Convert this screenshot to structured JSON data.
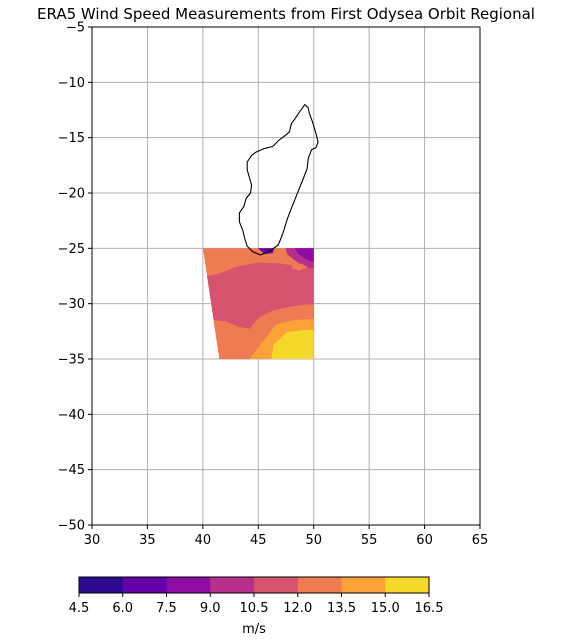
{
  "chart_data": {
    "type": "heatmap",
    "title": "ERA5 Wind Speed Measurements from First Odysea Orbit Regional",
    "x_ticks": [
      30,
      35,
      40,
      45,
      50,
      55,
      60,
      65
    ],
    "y_ticks": [
      -5,
      -10,
      -15,
      -20,
      -25,
      -30,
      -35,
      -40,
      -45,
      -50
    ],
    "xlim": [
      30,
      65
    ],
    "ylim": [
      -50,
      -5
    ],
    "grid": true,
    "colorbar": {
      "label": "m/s",
      "boundaries": [
        4.5,
        6.0,
        7.5,
        9.0,
        10.5,
        12.0,
        13.5,
        15.0,
        16.5
      ],
      "tick_labels": [
        "4.5",
        "6.0",
        "7.5",
        "9.0",
        "10.5",
        "12.0",
        "13.5",
        "15.0",
        "16.5"
      ],
      "colors": [
        "#2c0a8e",
        "#6300a7",
        "#8e0ca4",
        "#b6308b",
        "#d5536f",
        "#ee7b51",
        "#fba238",
        "#f5d829"
      ]
    },
    "coastline": {
      "name": "Madagascar",
      "lon_lat": [
        [
          49.2,
          -12.0
        ],
        [
          49.5,
          -12.3
        ],
        [
          49.6,
          -12.8
        ],
        [
          49.9,
          -13.6
        ],
        [
          50.2,
          -14.6
        ],
        [
          50.4,
          -15.4
        ],
        [
          50.2,
          -15.9
        ],
        [
          49.8,
          -16.1
        ],
        [
          49.5,
          -16.9
        ],
        [
          49.4,
          -17.8
        ],
        [
          49.1,
          -18.6
        ],
        [
          48.7,
          -19.6
        ],
        [
          48.3,
          -20.6
        ],
        [
          47.9,
          -21.6
        ],
        [
          47.6,
          -22.4
        ],
        [
          47.3,
          -23.4
        ],
        [
          47.0,
          -24.2
        ],
        [
          46.8,
          -24.7
        ],
        [
          46.1,
          -25.2
        ],
        [
          45.2,
          -25.6
        ],
        [
          44.5,
          -25.3
        ],
        [
          44.0,
          -24.8
        ],
        [
          43.8,
          -24.2
        ],
        [
          43.6,
          -23.4
        ],
        [
          43.3,
          -22.6
        ],
        [
          43.3,
          -21.8
        ],
        [
          43.7,
          -21.2
        ],
        [
          43.9,
          -20.5
        ],
        [
          44.3,
          -20.0
        ],
        [
          44.4,
          -19.3
        ],
        [
          44.2,
          -18.6
        ],
        [
          44.0,
          -17.9
        ],
        [
          44.0,
          -17.2
        ],
        [
          44.4,
          -16.6
        ],
        [
          44.8,
          -16.3
        ],
        [
          45.5,
          -16.0
        ],
        [
          46.3,
          -15.8
        ],
        [
          46.9,
          -15.2
        ],
        [
          47.3,
          -14.9
        ],
        [
          47.8,
          -14.5
        ],
        [
          48.0,
          -13.7
        ],
        [
          48.3,
          -13.3
        ],
        [
          48.7,
          -12.7
        ],
        [
          49.0,
          -12.3
        ],
        [
          49.2,
          -12.0
        ]
      ]
    },
    "field_region": {
      "lon_lat": [
        [
          40.0,
          -25.0
        ],
        [
          50.0,
          -25.0
        ],
        [
          50.0,
          -35.0
        ],
        [
          41.5,
          -35.0
        ]
      ]
    },
    "contour_bands": [
      {
        "level": 12.75,
        "lon_lat": [
          [
            40.0,
            -25.0
          ],
          [
            50.0,
            -25.0
          ],
          [
            50.0,
            -35.0
          ],
          [
            41.5,
            -35.0
          ]
        ]
      },
      {
        "level": 11.25,
        "lon_lat": [
          [
            40.0,
            -27.6
          ],
          [
            41.5,
            -27.3
          ],
          [
            43.0,
            -26.7
          ],
          [
            45.0,
            -26.3
          ],
          [
            47.0,
            -26.4
          ],
          [
            49.0,
            -26.7
          ],
          [
            50.0,
            -26.6
          ],
          [
            50.0,
            -35.0
          ],
          [
            41.5,
            -35.0
          ]
        ]
      },
      {
        "level": 9.75,
        "lon_lat": [
          [
            47.5,
            -25.0
          ],
          [
            50.0,
            -25.0
          ],
          [
            50.0,
            -26.8
          ],
          [
            49.0,
            -26.6
          ],
          [
            48.2,
            -26.0
          ],
          [
            47.6,
            -25.5
          ]
        ]
      },
      {
        "level": 8.25,
        "lon_lat": [
          [
            48.3,
            -25.0
          ],
          [
            50.0,
            -25.0
          ],
          [
            50.0,
            -26.2
          ],
          [
            49.4,
            -26.0
          ],
          [
            48.6,
            -25.5
          ]
        ]
      },
      {
        "level": 6.75,
        "lon_lat": [
          [
            45.0,
            -25.0
          ],
          [
            46.4,
            -25.0
          ],
          [
            46.3,
            -25.4
          ],
          [
            45.6,
            -25.5
          ]
        ]
      },
      {
        "level": 12.75,
        "lon_lat": [
          [
            40.9,
            -31.5
          ],
          [
            42.0,
            -31.6
          ],
          [
            43.2,
            -32.1
          ],
          [
            44.2,
            -32.3
          ],
          [
            45.0,
            -31.3
          ],
          [
            46.2,
            -30.7
          ],
          [
            47.8,
            -30.3
          ],
          [
            49.2,
            -30.1
          ],
          [
            50.0,
            -30.1
          ],
          [
            50.0,
            -35.0
          ],
          [
            41.5,
            -35.0
          ]
        ]
      },
      {
        "level": 14.25,
        "lon_lat": [
          [
            44.2,
            -35.0
          ],
          [
            45.3,
            -33.6
          ],
          [
            46.6,
            -31.9
          ],
          [
            48.2,
            -31.5
          ],
          [
            50.0,
            -31.4
          ],
          [
            50.0,
            -35.0
          ]
        ]
      },
      {
        "level": 15.75,
        "lon_lat": [
          [
            46.2,
            -35.0
          ],
          [
            46.4,
            -33.7
          ],
          [
            47.6,
            -32.6
          ],
          [
            49.2,
            -32.4
          ],
          [
            50.0,
            -32.4
          ],
          [
            50.0,
            -35.0
          ]
        ]
      },
      {
        "level": 12.75,
        "lon_lat": [
          [
            48.2,
            -26.4
          ],
          [
            48.9,
            -26.4
          ],
          [
            49.4,
            -26.7
          ],
          [
            48.7,
            -27.0
          ],
          [
            48.0,
            -26.8
          ]
        ]
      }
    ]
  }
}
